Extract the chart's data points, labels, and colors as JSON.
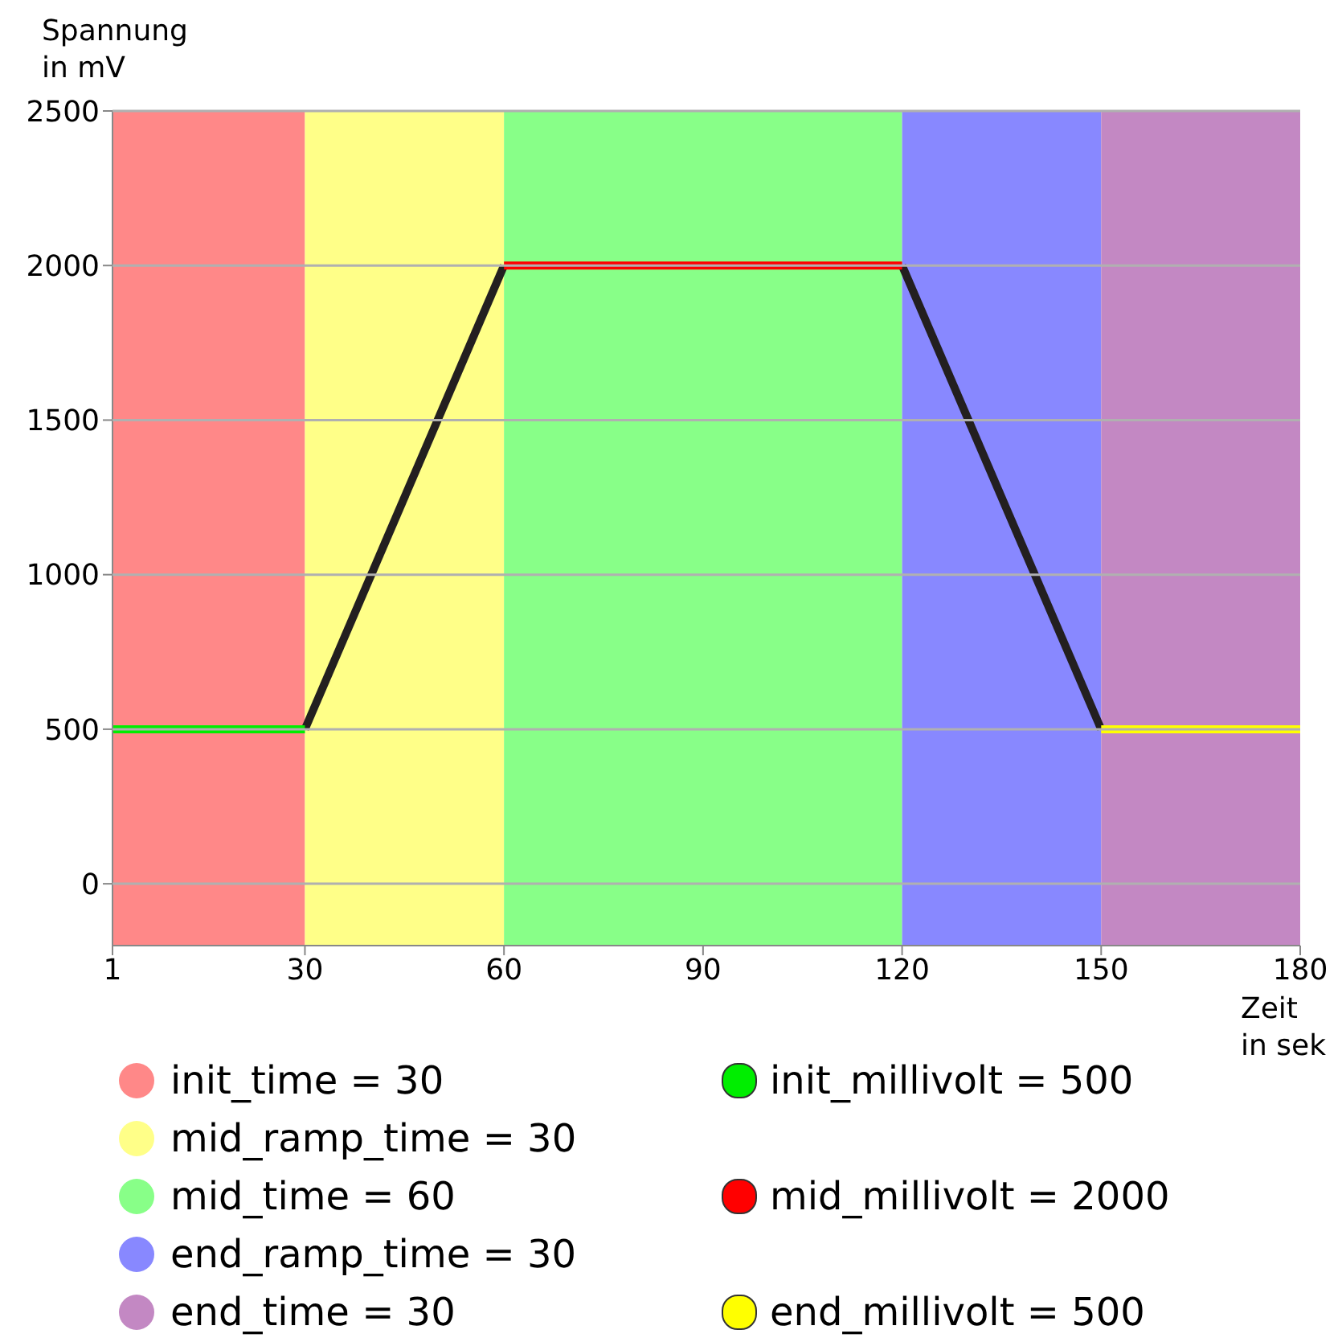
{
  "chart_data": {
    "type": "line",
    "xlabel": "Zeit\nin sek",
    "ylabel": "Spannung\nin mV",
    "xlim": [
      1,
      180
    ],
    "xticks": [
      1,
      30,
      60,
      90,
      120,
      150,
      180
    ],
    "ylim": [
      -200,
      2500
    ],
    "yticks": [
      0,
      500,
      1000,
      1500,
      2000,
      2500
    ],
    "grid": "y",
    "legend": "bottom",
    "marker": "none",
    "line_style": "solid",
    "bands": [
      {
        "axis": "x",
        "from": 1,
        "to": 30,
        "label": "init_time = 30",
        "color": "#ff8888"
      },
      {
        "axis": "x",
        "from": 30,
        "to": 60,
        "label": "mid_ramp_time = 30",
        "color": "#ffff88"
      },
      {
        "axis": "x",
        "from": 60,
        "to": 120,
        "label": "mid_time = 60",
        "color": "#88ff88"
      },
      {
        "axis": "x",
        "from": 120,
        "to": 150,
        "label": "end_ramp_time = 30",
        "color": "#8888ff"
      },
      {
        "axis": "x",
        "from": 150,
        "to": 180,
        "label": "end_time = 30",
        "color": "#c388c3"
      }
    ],
    "series": [
      {
        "color": "#231f20",
        "x": [
          30,
          60
        ],
        "values": [
          500,
          2000
        ]
      },
      {
        "color": "#231f20",
        "x": [
          120,
          150
        ],
        "values": [
          2000,
          500
        ]
      },
      {
        "name": "init_millivolt = 500",
        "color": "#00ee00",
        "x": [
          1,
          30
        ],
        "values": [
          500,
          500
        ]
      },
      {
        "name": "mid_millivolt = 2000",
        "color": "#ff0000",
        "x": [
          60,
          120
        ],
        "values": [
          2000,
          2000
        ]
      },
      {
        "name": "end_millivolt = 500",
        "color": "#ffff00",
        "x": [
          150,
          180
        ],
        "values": [
          500,
          500
        ]
      }
    ]
  }
}
